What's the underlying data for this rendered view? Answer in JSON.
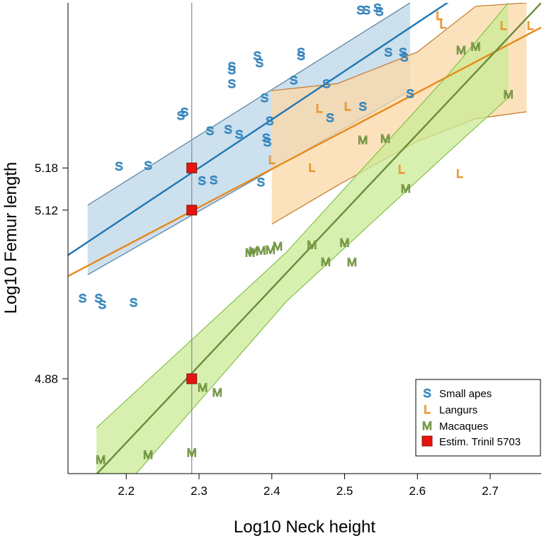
{
  "chart_data": {
    "type": "scatter",
    "xlabel": "Log10 Neck height",
    "ylabel": "Log10 Femur length",
    "xlim": [
      2.12,
      2.77
    ],
    "ylim": [
      4.745,
      5.415
    ],
    "xticks": [
      "2.2",
      "2.3",
      "2.4",
      "2.5",
      "2.6",
      "2.7"
    ],
    "yticks": [
      "4.88",
      "5.12",
      "5.18"
    ],
    "reference_x": 2.29,
    "series": [
      {
        "name": "Small apes",
        "marker": "S",
        "color": "#1f77b4",
        "fill": "#bcd6e8",
        "edge": "#4f7f9f",
        "points": [
          [
            2.14,
            4.995
          ],
          [
            2.162,
            4.995
          ],
          [
            2.167,
            4.986
          ],
          [
            2.21,
            4.989
          ],
          [
            2.19,
            5.183
          ],
          [
            2.23,
            5.184
          ],
          [
            2.275,
            5.255
          ],
          [
            2.28,
            5.26
          ],
          [
            2.304,
            5.162
          ],
          [
            2.32,
            5.163
          ],
          [
            2.315,
            5.233
          ],
          [
            2.34,
            5.235
          ],
          [
            2.355,
            5.228
          ],
          [
            2.345,
            5.3
          ],
          [
            2.345,
            5.325
          ],
          [
            2.345,
            5.32
          ],
          [
            2.38,
            5.34
          ],
          [
            2.383,
            5.33
          ],
          [
            2.385,
            5.16
          ],
          [
            2.39,
            5.28
          ],
          [
            2.392,
            5.223
          ],
          [
            2.394,
            5.217
          ],
          [
            2.397,
            5.247
          ],
          [
            2.43,
            5.305
          ],
          [
            2.44,
            5.345
          ],
          [
            2.44,
            5.34
          ],
          [
            2.475,
            5.3
          ],
          [
            2.48,
            5.252
          ],
          [
            2.525,
            5.268
          ],
          [
            2.522,
            5.405
          ],
          [
            2.53,
            5.405
          ],
          [
            2.545,
            5.408
          ],
          [
            2.548,
            5.403
          ],
          [
            2.56,
            5.345
          ],
          [
            2.58,
            5.345
          ],
          [
            2.582,
            5.338
          ],
          [
            2.59,
            5.286
          ]
        ],
        "fit_line": [
          [
            2.12,
            5.056
          ],
          [
            2.67,
            5.435
          ]
        ],
        "band": {
          "x": [
            2.147,
            2.59
          ],
          "upper": [
            5.127,
            5.415
          ],
          "lower": [
            5.028,
            5.29
          ]
        }
      },
      {
        "name": "Langurs",
        "marker": "L",
        "color": "#e8891a",
        "fill": "#fbd8a6",
        "edge": "#c4792a",
        "points": [
          [
            2.4,
            5.192
          ],
          [
            2.455,
            5.181
          ],
          [
            2.465,
            5.265
          ],
          [
            2.504,
            5.268
          ],
          [
            2.578,
            5.178
          ],
          [
            2.63,
            5.397
          ],
          [
            2.635,
            5.385
          ],
          [
            2.658,
            5.172
          ],
          [
            2.718,
            5.383
          ],
          [
            2.755,
            5.383
          ]
        ],
        "fit_line": [
          [
            2.12,
            5.026
          ],
          [
            2.77,
            5.38
          ]
        ],
        "band": {
          "x": [
            2.4,
            2.49,
            2.6,
            2.68,
            2.75
          ],
          "upper": [
            5.29,
            5.3,
            5.345,
            5.41,
            5.415
          ],
          "lower": [
            5.1,
            5.155,
            5.218,
            5.25,
            5.26
          ]
        }
      },
      {
        "name": "Macaques",
        "marker": "M",
        "color": "#6a8c3a",
        "fill": "#c9eb95",
        "edge": "#86c04a",
        "points": [
          [
            2.165,
            4.765
          ],
          [
            2.23,
            4.772
          ],
          [
            2.29,
            4.775
          ],
          [
            2.305,
            4.868
          ],
          [
            2.325,
            4.861
          ],
          [
            2.37,
            5.06
          ],
          [
            2.375,
            5.062
          ],
          [
            2.385,
            5.063
          ],
          [
            2.398,
            5.064
          ],
          [
            2.408,
            5.069
          ],
          [
            2.455,
            5.071
          ],
          [
            2.474,
            5.047
          ],
          [
            2.5,
            5.074
          ],
          [
            2.51,
            5.046
          ],
          [
            2.525,
            5.22
          ],
          [
            2.556,
            5.222
          ],
          [
            2.584,
            5.151
          ],
          [
            2.66,
            5.348
          ],
          [
            2.68,
            5.353
          ],
          [
            2.725,
            5.285
          ]
        ],
        "fit_line": [
          [
            2.16,
            4.745
          ],
          [
            2.77,
            5.415
          ]
        ],
        "band": {
          "x": [
            2.159,
            2.42,
            2.64,
            2.725
          ],
          "upper": [
            4.81,
            5.06,
            5.31,
            5.415
          ],
          "lower": [
            4.68,
            4.99,
            5.2,
            5.28
          ]
        }
      },
      {
        "name": "Estim. Trinil 5703",
        "marker": "square",
        "color": "#e8130e",
        "edge": "#7a1a10",
        "points": [
          [
            2.29,
            5.18
          ],
          [
            2.29,
            5.12
          ],
          [
            2.29,
            4.88
          ]
        ]
      }
    ]
  }
}
